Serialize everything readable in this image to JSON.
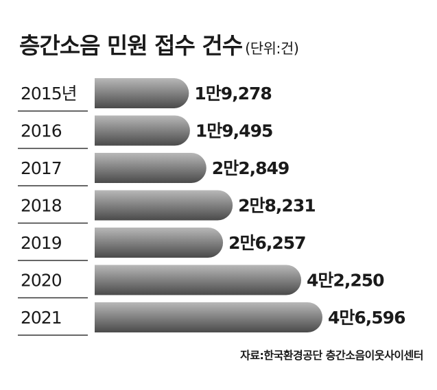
{
  "header": {
    "title": "층간소음 민원 접수 건수",
    "unit": "(단위:건)"
  },
  "source": "자료:한국환경공단 층간소음이웃사이센터",
  "colors": {
    "bar_top": "#b8b8b8",
    "bar_bottom": "#4a4a4a",
    "text": "#1a1a1a",
    "divider": "#333333"
  },
  "chart_data": {
    "type": "bar",
    "orientation": "horizontal",
    "title": "층간소음 민원 접수 건수",
    "unit": "(단위:건)",
    "categories": [
      "2015년",
      "2016",
      "2017",
      "2018",
      "2019",
      "2020",
      "2021"
    ],
    "values": [
      19278,
      19495,
      22849,
      28231,
      26257,
      42250,
      46596
    ],
    "value_labels": [
      "1만9,278",
      "1만9,495",
      "2만2,849",
      "2만8,231",
      "2만6,257",
      "4만2,250",
      "4만6,596"
    ],
    "xlim": [
      0,
      46596
    ],
    "grid": false,
    "legend": "none"
  }
}
